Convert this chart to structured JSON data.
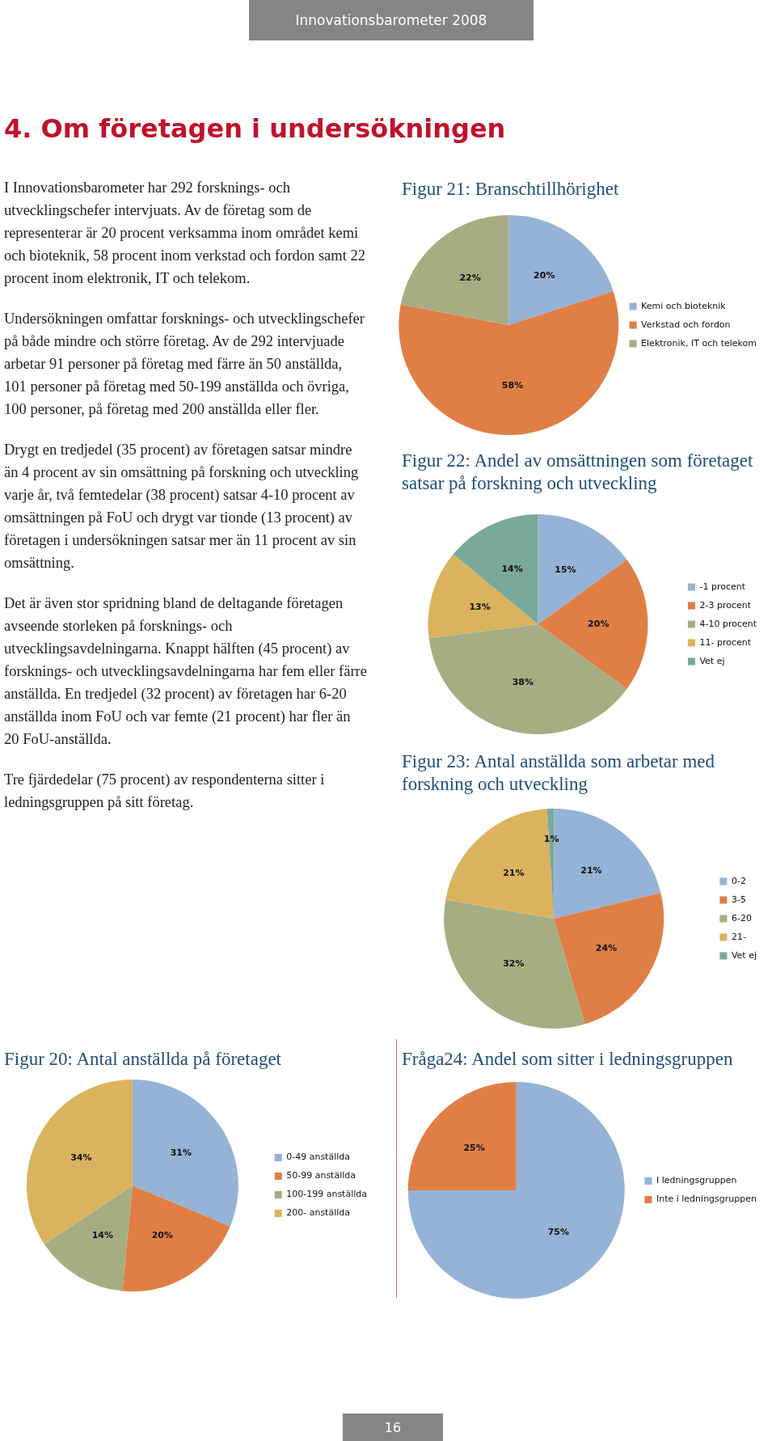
{
  "chart_data": [
    {
      "type": "other",
      "title": "4. Om företagen i undersökningen",
      "subtitle": "Innovationsbarometer 2008",
      "annotations": [
        "I Innovationsbarometer har 292 forsknings- och utvecklingschefer intervjuats. Av de företag som de representerar är 20 procent verksamma inom området kemi och bioteknik, 58 procent inom verkstad och fordon samt 22 procent inom elektronik, IT och telekom.",
        "Undersökningen omfattar forsknings- och utvecklingschefer på både mindre och större företag. Av de 292 intervjuade arbetar 91 personer på företag med färre än 50 anställda, 101 personer på företag med 50-199 anställda och övriga, 100 personer, på företag med 200 anställda eller fler.",
        "Drygt en tredjedel (35 procent) av företagen satsar mindre än 4 procent av sin omsättning på forskning och utveckling varje år, två femtedelar (38 procent) satsar 4-10 procent av omsättningen på FoU och drygt var tionde (13 procent) av företagen i undersökningen satsar mer än 11 procent av sin omsättning.",
        "Det är även stor spridning bland de deltagande företagen avseende storleken på forsknings- och utvecklingsavdelningarna. Knappt hälften (45 procent) av forsknings- och utvecklingsavdelningarna har fem eller färre anställda. En tredjedel (32 procent) av företagen har 6-20 anställda inom FoU och var femte (21 procent) har fler än 20 FoU-anställda.",
        "Tre fjärdedelar (75 procent) av respondenterna sitter i ledningsgruppen på sitt företag.",
        "16"
      ]
    },
    {
      "type": "pie",
      "title": "Figur 21: Branschtillhörighet",
      "categories": [
        "Kemi och bioteknik",
        "Verkstad och fordon",
        "Elektronik, IT och telekom"
      ],
      "values": [
        20,
        58,
        22
      ],
      "colors": [
        "#95b3d7",
        "#e07f45",
        "#a6ad82"
      ],
      "value_labels": [
        "20%",
        "58%",
        "22%"
      ],
      "legend": "right"
    },
    {
      "type": "pie",
      "title": "Figur 22: Andel av omsättningen som företaget satsar på forskning och utveckling",
      "categories": [
        "-1 procent",
        "2-3 procent",
        "4-10 procent",
        "11- procent",
        "Vet ej"
      ],
      "values": [
        15,
        20,
        38,
        13,
        14
      ],
      "colors": [
        "#95b3d7",
        "#e07f45",
        "#a6ad82",
        "#dbb35e",
        "#7aa99b"
      ],
      "value_labels": [
        "15%",
        "20%",
        "38%",
        "13%",
        "14%"
      ],
      "legend": "right"
    },
    {
      "type": "pie",
      "title": "Figur 23: Antal anställda  som arbetar med forskning och utveckling",
      "categories": [
        "0-2",
        "3-5",
        "6-20",
        "21-",
        "Vet ej"
      ],
      "values": [
        21,
        24,
        32,
        21,
        1
      ],
      "colors": [
        "#95b3d7",
        "#e07f45",
        "#a6ad82",
        "#dbb35e",
        "#7aa99b"
      ],
      "value_labels": [
        "21%",
        "24%",
        "32%",
        "21%",
        "1%"
      ],
      "legend": "right"
    },
    {
      "type": "pie",
      "title": "Figur 20: Antal anställda på företaget",
      "categories": [
        "0-49 anställda",
        "50-99 anställda",
        "100-199 anställda",
        "200- anställda"
      ],
      "values": [
        31,
        20,
        14,
        34
      ],
      "colors": [
        "#95b3d7",
        "#e07f45",
        "#a6ad82",
        "#dbb35e"
      ],
      "value_labels": [
        "31%",
        "20%",
        "14%",
        "34%"
      ],
      "legend": "right"
    },
    {
      "type": "pie",
      "title": "Fråga24: Andel som sitter i ledningsgruppen",
      "categories": [
        "I ledningsgruppen",
        "Inte i ledningsgruppen"
      ],
      "values": [
        75,
        25
      ],
      "colors": [
        "#95b3d7",
        "#e07f45"
      ],
      "value_labels": [
        "75%",
        "25%"
      ],
      "legend": "right"
    }
  ]
}
